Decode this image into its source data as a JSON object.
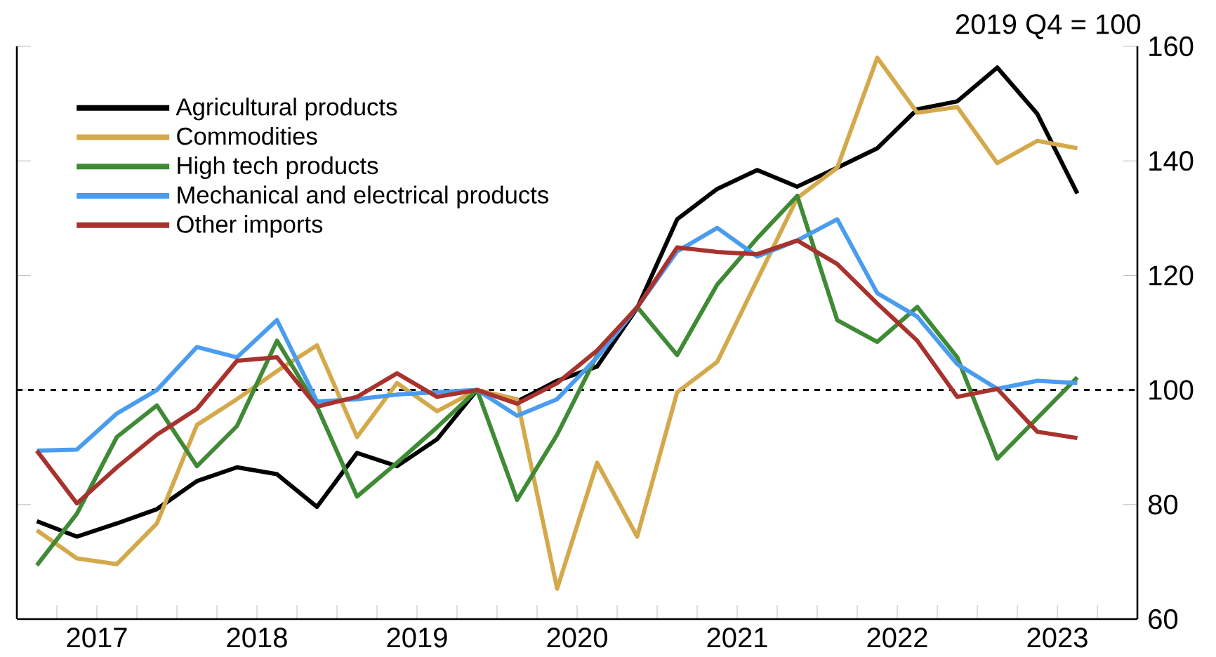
{
  "chart_data": {
    "type": "line",
    "ylabel": "2019 Q4 = 100",
    "x": [
      2017.125,
      2017.375,
      2017.625,
      2017.875,
      2018.125,
      2018.375,
      2018.625,
      2018.875,
      2019.125,
      2019.375,
      2019.625,
      2019.875,
      2020.125,
      2020.375,
      2020.625,
      2020.875,
      2021.125,
      2021.375,
      2021.625,
      2021.875,
      2022.125,
      2022.375,
      2022.625,
      2022.875,
      2023.125,
      2023.375,
      2023.625
    ],
    "series": [
      {
        "name": "Agricultural products",
        "color": "#000000",
        "values": [
          77.1,
          74.4,
          76.7,
          79.2,
          84.1,
          86.5,
          85.3,
          79.6,
          89.0,
          86.7,
          91.4,
          100,
          98.0,
          101.6,
          104.1,
          114.3,
          129.8,
          135.1,
          138.4,
          135.5,
          138.8,
          142.2,
          149.0,
          150.4,
          156.3,
          148.2,
          134.3
        ]
      },
      {
        "name": "Commodities",
        "color": "#d4a94b",
        "values": [
          75.5,
          70.6,
          69.6,
          76.7,
          93.9,
          98.4,
          103.3,
          107.8,
          91.8,
          101.2,
          96.3,
          100,
          98.4,
          65.3,
          87.3,
          74.4,
          99.6,
          104.9,
          119.2,
          133.5,
          138.8,
          158.0,
          148.4,
          149.4,
          139.6,
          143.5,
          142.2
        ]
      },
      {
        "name": "High tech products",
        "color": "#3f8a34",
        "values": [
          69.4,
          78.4,
          91.8,
          97.3,
          86.7,
          93.7,
          108.6,
          97.1,
          81.4,
          87.3,
          93.5,
          100,
          80.8,
          92.2,
          106.1,
          114.5,
          106.1,
          118.4,
          126.5,
          133.9,
          112.2,
          108.4,
          114.5,
          105.7,
          88.0,
          95.1,
          102.2
        ]
      },
      {
        "name": "Mechanical and electrical products",
        "color": "#4a9cf0",
        "values": [
          89.4,
          89.6,
          95.9,
          100,
          107.5,
          105.7,
          112.2,
          98.0,
          98.4,
          99.2,
          99.6,
          100,
          95.5,
          98.4,
          105.7,
          114.4,
          124.2,
          128.3,
          123.3,
          126.1,
          129.8,
          116.9,
          112.8,
          104.5,
          100.2,
          101.6,
          101.2
        ]
      },
      {
        "name": "Other imports",
        "color": "#a8322d",
        "values": [
          89.4,
          80.2,
          86.5,
          92.2,
          96.7,
          105.1,
          105.7,
          97.1,
          98.8,
          102.9,
          98.8,
          100,
          97.6,
          101.2,
          106.9,
          114.4,
          124.9,
          124.1,
          123.7,
          126.1,
          122.0,
          115.1,
          108.6,
          98.8,
          100.2,
          92.7,
          91.6
        ]
      }
    ],
    "xlim": [
      2017,
      2024
    ],
    "xticks": [
      {
        "value": 2017,
        "label": null
      },
      {
        "value": 2017.25,
        "label": null
      },
      {
        "value": 2017.5,
        "label": "2017"
      },
      {
        "value": 2017.75,
        "label": null
      },
      {
        "value": 2018,
        "label": null
      },
      {
        "value": 2018.25,
        "label": null
      },
      {
        "value": 2018.5,
        "label": "2018"
      },
      {
        "value": 2018.75,
        "label": null
      },
      {
        "value": 2019,
        "label": null
      },
      {
        "value": 2019.25,
        "label": null
      },
      {
        "value": 2019.5,
        "label": "2019"
      },
      {
        "value": 2019.75,
        "label": null
      },
      {
        "value": 2020,
        "label": null
      },
      {
        "value": 2020.25,
        "label": null
      },
      {
        "value": 2020.5,
        "label": "2020"
      },
      {
        "value": 2020.75,
        "label": null
      },
      {
        "value": 2021,
        "label": null
      },
      {
        "value": 2021.25,
        "label": null
      },
      {
        "value": 2021.5,
        "label": "2021"
      },
      {
        "value": 2021.75,
        "label": null
      },
      {
        "value": 2022,
        "label": null
      },
      {
        "value": 2022.25,
        "label": null
      },
      {
        "value": 2022.5,
        "label": "2022"
      },
      {
        "value": 2022.75,
        "label": null
      },
      {
        "value": 2023,
        "label": null
      },
      {
        "value": 2023.25,
        "label": null
      },
      {
        "value": 2023.5,
        "label": "2023"
      },
      {
        "value": 2023.75,
        "label": null
      },
      {
        "value": 2024,
        "label": null
      }
    ],
    "ylim": [
      60,
      160
    ],
    "yticks": [
      60,
      80,
      100,
      120,
      140,
      160
    ],
    "ref_lines": [
      {
        "axis": "y",
        "value": 100,
        "line_style": "dashed",
        "color": "#000000"
      }
    ],
    "legend": "top left",
    "line_style": "solid"
  }
}
